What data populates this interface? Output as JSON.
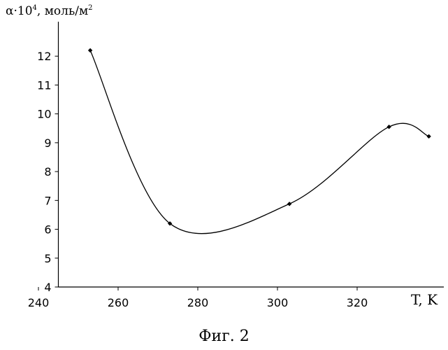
{
  "chart_data": {
    "type": "line",
    "ylabel_prefix": "α·10",
    "ylabel_exponent": "4",
    "ylabel_unit_prefix": ", моль/м",
    "ylabel_unit_exponent": "2",
    "xlabel": "T, K",
    "caption": "Фиг. 2",
    "xlim": [
      240,
      340
    ],
    "ylim": [
      4,
      13
    ],
    "x_ticks": [
      240,
      260,
      280,
      300,
      320
    ],
    "y_ticks": [
      4,
      5,
      6,
      7,
      8,
      9,
      10,
      11,
      12
    ],
    "series": [
      {
        "x": [
          253,
          273,
          303,
          328,
          338
        ],
        "y": [
          12.2,
          6.2,
          6.88,
          9.55,
          9.22
        ]
      }
    ],
    "smooth": true,
    "grid": false,
    "colors": {
      "line": "#000000",
      "axis": "#000000"
    }
  }
}
